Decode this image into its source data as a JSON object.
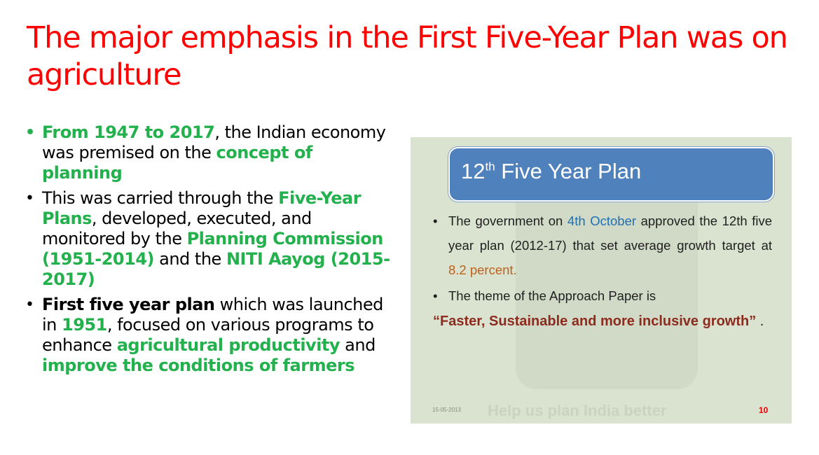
{
  "slide": {
    "title": "The major emphasis in the First Five-Year Plan was on agriculture",
    "bullet_symbol": "•",
    "bullets": [
      {
        "parts": [
          "From 1947 to 2017",
          ", the Indian economy was premised on the ",
          "concept of planning"
        ]
      },
      {
        "parts": [
          "This was carried through the ",
          "Five-Year Plans",
          ", developed, executed, and monitored by the ",
          "Planning Commission (1951-2014)",
          " and the ",
          "NITI Aayog (2015-2017)"
        ]
      },
      {
        "parts": [
          "First five year plan",
          " which was launched in ",
          "1951",
          ", focused on various programs to enhance ",
          "agricultural productivity",
          " and ",
          "improve the conditions of farmers"
        ]
      }
    ]
  },
  "embedded_slide": {
    "header_main": "12",
    "header_sup": "th",
    "header_rest": " Five Year Plan",
    "bullet_symbol": "•",
    "item1": {
      "a": "The government on ",
      "date": "4th October",
      "b": " approved the 12th five year plan (2012-17) that set average growth target at ",
      "rate": "8.2 percent."
    },
    "item2": "The theme of the Approach Paper is",
    "quote": "“Faster, Sustainable and more inclusive growth”",
    "quote_end": " .",
    "watermark": "Help us plan India better",
    "footer_date": "15-05-2013",
    "page_number": "10"
  },
  "colors": {
    "title": "#ff0000",
    "highlight_green": "#22b14c",
    "header_box": "#4f81bd",
    "blue_text": "#1f6fb5",
    "orange_text": "#c0601b",
    "quote_text": "#8c2b1e",
    "page_number": "#e00000"
  }
}
